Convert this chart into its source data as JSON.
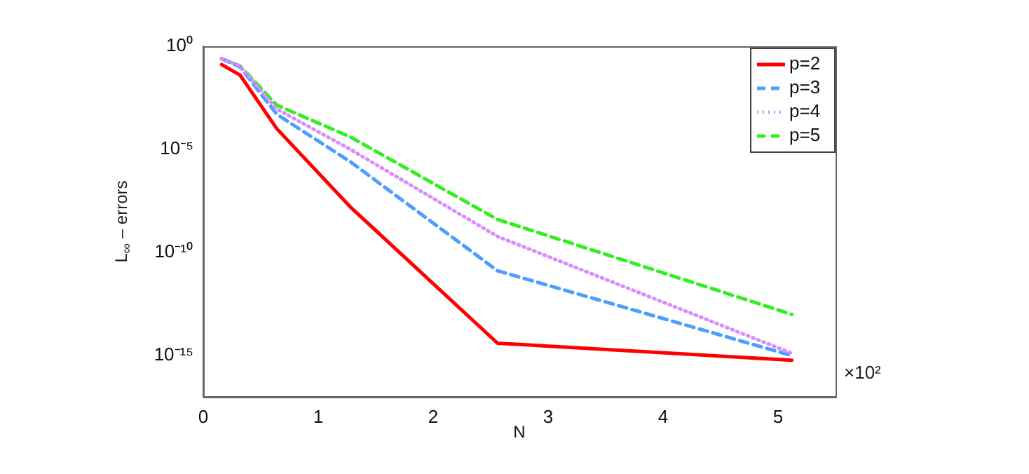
{
  "chart_data": {
    "type": "line",
    "xlabel": "N",
    "ylabel": "L$_{∞}$ – errors",
    "annotations": [
      "×10²"
    ],
    "x": [
      0.16,
      0.32,
      0.64,
      1.28,
      2.56,
      5.12
    ],
    "xlim": [
      0,
      5.5
    ],
    "xticks": [
      0,
      1,
      2,
      3,
      4,
      5
    ],
    "ylim": [
      1e-17,
      1
    ],
    "yticks": [
      {
        "value": 1,
        "label": "10⁰"
      },
      {
        "value": 1e-05,
        "label": "10⁻⁵"
      },
      {
        "value": 1e-10,
        "label": "10⁻¹⁰"
      },
      {
        "value": 1e-15,
        "label": "10⁻¹⁵"
      }
    ],
    "log": "y",
    "grid": false,
    "legend": "top right",
    "marker": "none",
    "series": [
      {
        "name": "p=2",
        "color": "#ff0000",
        "line_style": "solid",
        "values": [
          0.13,
          0.04,
          0.0001,
          1.6e-08,
          4e-15,
          6e-16
        ]
      },
      {
        "name": "p=3",
        "color": "#4d9eff",
        "line_style": "dashed",
        "values": [
          0.25,
          0.1,
          0.0005,
          2.5e-06,
          1.3e-11,
          1e-15
        ]
      },
      {
        "name": "p=4",
        "color": "#d98cff",
        "line_style": "dotted",
        "values": [
          0.25,
          0.11,
          0.0009,
          1e-05,
          6e-10,
          1.3e-15
        ]
      },
      {
        "name": "p=5",
        "color": "#33ee22",
        "line_style": "dashed",
        "values": [
          0.25,
          0.11,
          0.0014,
          4e-05,
          4e-09,
          1e-13
        ]
      }
    ]
  }
}
